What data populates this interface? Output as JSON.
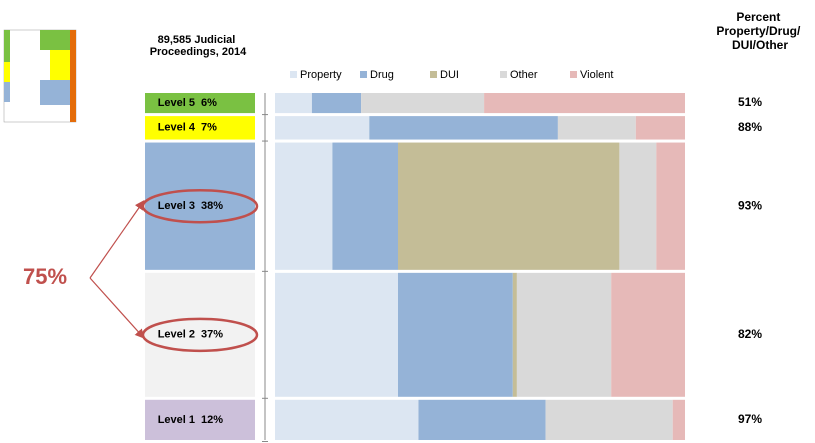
{
  "chart_data": {
    "type": "mekko",
    "title": "89,585  Judicial Proceedings, 2014",
    "right_title": "Percent Property/Drug/ DUI/Other",
    "annotation": "75%",
    "categories": [
      "Level 5",
      "Level 4",
      "Level 3",
      "Level 2",
      "Level 1"
    ],
    "widths": [
      6,
      7,
      38,
      37,
      12
    ],
    "width_labels": [
      "6%",
      "7%",
      "38%",
      "37%",
      "12%"
    ],
    "category_colors": [
      "#7ac142",
      "#ffff00",
      "#95b3d7",
      "#f2f2f2",
      "#ccc0da"
    ],
    "series": [
      {
        "name": "Property",
        "color": "#dce6f2",
        "values": [
          9,
          23,
          14,
          30,
          35
        ]
      },
      {
        "name": "Drug",
        "color": "#95b3d7",
        "values": [
          12,
          46,
          16,
          28,
          31
        ]
      },
      {
        "name": "DUI",
        "color": "#c4bd97",
        "values": [
          0,
          0,
          54,
          1,
          0
        ]
      },
      {
        "name": "Other",
        "color": "#d9d9d9",
        "values": [
          30,
          19,
          9,
          23,
          31
        ]
      },
      {
        "name": "Violent",
        "color": "#e6b9b8",
        "values": [
          49,
          12,
          7,
          18,
          3
        ]
      }
    ],
    "totals": [
      51,
      88,
      93,
      82,
      97
    ],
    "total_labels": [
      "51%",
      "88%",
      "93%",
      "82%",
      "97%"
    ]
  }
}
